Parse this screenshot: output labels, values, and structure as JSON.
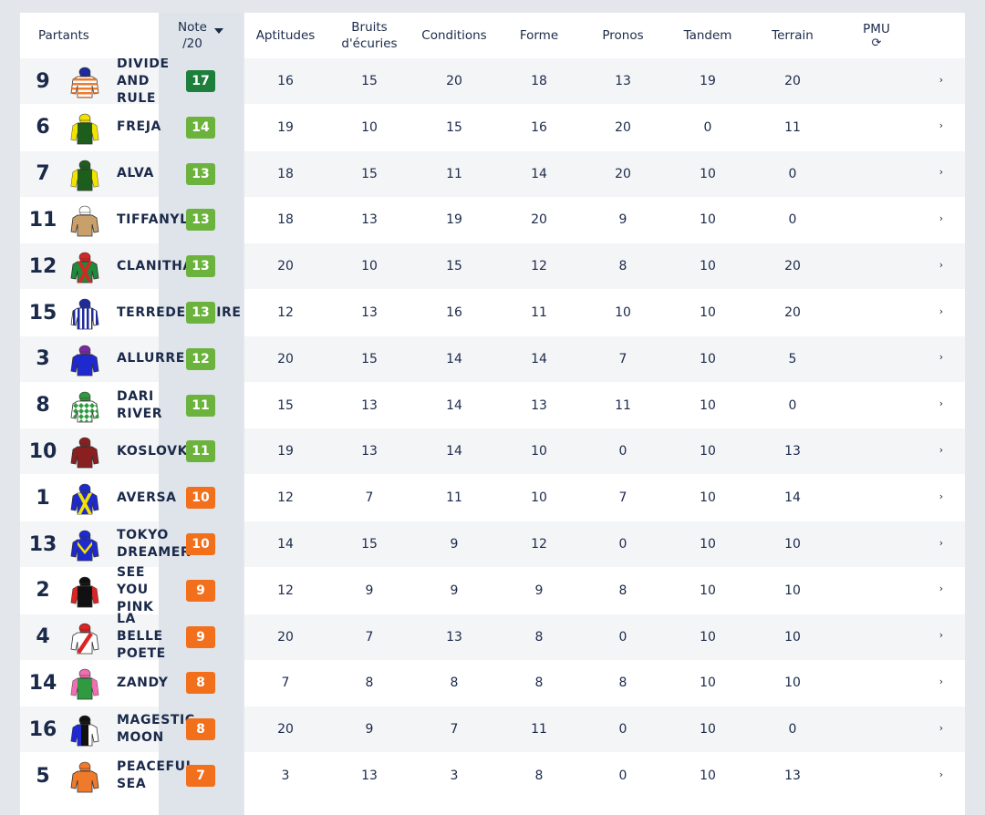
{
  "header": {
    "partants": "Partants",
    "note_line1": "Note",
    "note_line2": "/20",
    "aptitudes": "Aptitudes",
    "bruits_line1": "Bruits",
    "bruits_line2": "d'écuries",
    "conditions": "Conditions",
    "forme": "Forme",
    "pronos": "Pronos",
    "tandem": "Tandem",
    "terrain": "Terrain",
    "pmu": "PMU",
    "refresh_icon": "refresh-icon"
  },
  "colors": {
    "dark_green": "#1e7f3c",
    "light_green": "#6cb33e",
    "orange": "#f26f1b",
    "text": "#1b2a4a"
  },
  "rows": [
    {
      "num": "9",
      "name": [
        "DIVIDE",
        "AND",
        "RULE"
      ],
      "note": "17",
      "note_level": "dark_green",
      "aptitudes": "16",
      "bruits": "15",
      "conditions": "20",
      "forme": "18",
      "pronos": "13",
      "tandem": "19",
      "terrain": "20",
      "silk": {
        "body": "#ffffff",
        "stripe": "#f07a2b",
        "pattern": "hoops",
        "cap": "#1e2aa0"
      }
    },
    {
      "num": "6",
      "name": [
        "FREJA"
      ],
      "note": "14",
      "note_level": "light_green",
      "aptitudes": "19",
      "bruits": "10",
      "conditions": "15",
      "forme": "16",
      "pronos": "20",
      "tandem": "0",
      "terrain": "11",
      "silk": {
        "body": "#1d5e1d",
        "stripe": "#f2e200",
        "pattern": "sleeves",
        "cap": "#f2e200"
      }
    },
    {
      "num": "7",
      "name": [
        "ALVA"
      ],
      "note": "13",
      "note_level": "light_green",
      "aptitudes": "18",
      "bruits": "15",
      "conditions": "11",
      "forme": "14",
      "pronos": "20",
      "tandem": "10",
      "terrain": "0",
      "silk": {
        "body": "#1d5e1d",
        "stripe": "#f2e200",
        "pattern": "sleeves",
        "cap": "#1d5e1d"
      }
    },
    {
      "num": "11",
      "name": [
        "TIFFANYLI"
      ],
      "note": "13",
      "note_level": "light_green",
      "aptitudes": "18",
      "bruits": "13",
      "conditions": "19",
      "forme": "20",
      "pronos": "9",
      "tandem": "10",
      "terrain": "0",
      "silk": {
        "body": "#c9a06a",
        "stripe": "#c9a06a",
        "pattern": "plain",
        "cap": "#ffffff"
      }
    },
    {
      "num": "12",
      "name": [
        "CLANITHA"
      ],
      "note": "13",
      "note_level": "light_green",
      "aptitudes": "20",
      "bruits": "10",
      "conditions": "15",
      "forme": "12",
      "pronos": "8",
      "tandem": "10",
      "terrain": "20",
      "silk": {
        "body": "#1f8a3a",
        "stripe": "#d82626",
        "pattern": "cross",
        "cap": "#d82626"
      }
    },
    {
      "num": "15",
      "name": [
        "TERREDEGLOIRE"
      ],
      "note": "13",
      "note_level": "light_green",
      "aptitudes": "12",
      "bruits": "13",
      "conditions": "16",
      "forme": "11",
      "pronos": "10",
      "tandem": "10",
      "terrain": "20",
      "silk": {
        "body": "#ffffff",
        "stripe": "#1e2aa0",
        "pattern": "vstripes",
        "cap": "#1e2aa0"
      }
    },
    {
      "num": "3",
      "name": [
        "ALLURRE"
      ],
      "note": "12",
      "note_level": "light_green",
      "aptitudes": "20",
      "bruits": "15",
      "conditions": "14",
      "forme": "14",
      "pronos": "7",
      "tandem": "10",
      "terrain": "5",
      "silk": {
        "body": "#1e2ad0",
        "stripe": "#1e2ad0",
        "pattern": "plain",
        "cap": "#7a2aa0"
      }
    },
    {
      "num": "8",
      "name": [
        "DARI",
        "RIVER"
      ],
      "note": "11",
      "note_level": "light_green",
      "aptitudes": "15",
      "bruits": "13",
      "conditions": "14",
      "forme": "13",
      "pronos": "11",
      "tandem": "10",
      "terrain": "0",
      "silk": {
        "body": "#ffffff",
        "stripe": "#2f9a3f",
        "pattern": "diamonds",
        "cap": "#2f9a3f"
      }
    },
    {
      "num": "10",
      "name": [
        "KOSLOVKA"
      ],
      "note": "11",
      "note_level": "light_green",
      "aptitudes": "19",
      "bruits": "13",
      "conditions": "14",
      "forme": "10",
      "pronos": "0",
      "tandem": "10",
      "terrain": "13",
      "silk": {
        "body": "#8a1f1f",
        "stripe": "#8a1f1f",
        "pattern": "plain",
        "cap": "#8a1f1f"
      }
    },
    {
      "num": "1",
      "name": [
        "AVERSA"
      ],
      "note": "10",
      "note_level": "orange",
      "aptitudes": "12",
      "bruits": "7",
      "conditions": "11",
      "forme": "10",
      "pronos": "7",
      "tandem": "10",
      "terrain": "14",
      "silk": {
        "body": "#1e2ad0",
        "stripe": "#f2e200",
        "pattern": "cross",
        "cap": "#1e2ad0"
      }
    },
    {
      "num": "13",
      "name": [
        "TOKYO",
        "DREAMER"
      ],
      "note": "10",
      "note_level": "orange",
      "aptitudes": "14",
      "bruits": "15",
      "conditions": "9",
      "forme": "12",
      "pronos": "0",
      "tandem": "10",
      "terrain": "10",
      "silk": {
        "body": "#1e2ad0",
        "stripe": "#f2e200",
        "pattern": "chevron",
        "cap": "#1e2ad0"
      }
    },
    {
      "num": "2",
      "name": [
        "SEE",
        "YOU",
        "PINK"
      ],
      "note": "9",
      "note_level": "orange",
      "aptitudes": "12",
      "bruits": "9",
      "conditions": "9",
      "forme": "9",
      "pronos": "8",
      "tandem": "10",
      "terrain": "10",
      "silk": {
        "body": "#111111",
        "stripe": "#d82626",
        "pattern": "sleeves",
        "cap": "#111111"
      }
    },
    {
      "num": "4",
      "name": [
        "LA",
        "BELLE",
        "POETE"
      ],
      "note": "9",
      "note_level": "orange",
      "aptitudes": "20",
      "bruits": "7",
      "conditions": "13",
      "forme": "8",
      "pronos": "0",
      "tandem": "10",
      "terrain": "10",
      "silk": {
        "body": "#ffffff",
        "stripe": "#d82626",
        "pattern": "sash",
        "cap": "#d82626"
      }
    },
    {
      "num": "14",
      "name": [
        "ZANDY"
      ],
      "note": "8",
      "note_level": "orange",
      "aptitudes": "7",
      "bruits": "8",
      "conditions": "8",
      "forme": "8",
      "pronos": "8",
      "tandem": "10",
      "terrain": "10",
      "silk": {
        "body": "#2f9a3f",
        "stripe": "#f06fb0",
        "pattern": "sleeves",
        "cap": "#f06fb0"
      }
    },
    {
      "num": "16",
      "name": [
        "MAGESTIC",
        "MOON"
      ],
      "note": "8",
      "note_level": "orange",
      "aptitudes": "20",
      "bruits": "9",
      "conditions": "7",
      "forme": "11",
      "pronos": "0",
      "tandem": "10",
      "terrain": "0",
      "silk": {
        "body": "#ffffff",
        "stripe": "#1e2ad0",
        "pattern": "halves",
        "cap": "#111111"
      }
    },
    {
      "num": "5",
      "name": [
        "PEACEFUL",
        "SEA"
      ],
      "note": "7",
      "note_level": "orange",
      "aptitudes": "3",
      "bruits": "13",
      "conditions": "3",
      "forme": "8",
      "pronos": "0",
      "tandem": "10",
      "terrain": "13",
      "silk": {
        "body": "#f07a2b",
        "stripe": "#f07a2b",
        "pattern": "plain",
        "cap": "#f07a2b"
      }
    }
  ]
}
